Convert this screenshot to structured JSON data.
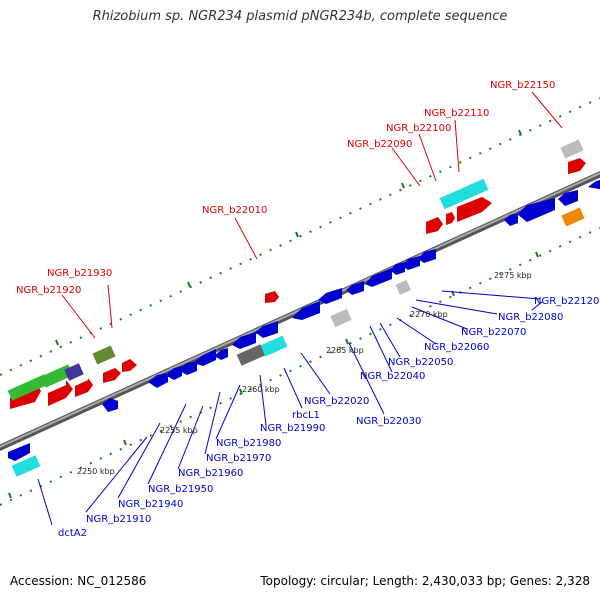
{
  "title": "Rhizobium sp. NGR234 plasmid pNGR234b, complete sequence",
  "footer": {
    "accession": "Accession: NC_012586",
    "summary": "Topology: circular; Length: 2,430,033 bp; Genes: 2,328"
  },
  "colors": {
    "backbone": "#8a8a8a",
    "tick_dash": "#1f7a1f",
    "label_red": "#dd0000",
    "label_blue": "#0000cc"
  },
  "scale_labels": [
    "2250 kbp",
    "2255 kbp",
    "2260 kbp",
    "2265 kbp",
    "2270 kbp",
    "2275 kbp"
  ],
  "gene_labels_top": [
    "NGR_b21920",
    "NGR_b21930",
    "NGR_b22010",
    "NGR_b22090",
    "NGR_b22100",
    "NGR_b22110",
    "NGR_b22150"
  ],
  "gene_labels_bottom": [
    "dctA2",
    "NGR_b21910",
    "NGR_b21940",
    "NGR_b21950",
    "NGR_b21960",
    "NGR_b21970",
    "NGR_b21980",
    "NGR_b21990",
    "rbcL1",
    "NGR_b22020",
    "NGR_b22030",
    "NGR_b22040",
    "NGR_b22050",
    "NGR_b22060",
    "NGR_b22070",
    "NGR_b22080",
    "NGR_b22120"
  ]
}
